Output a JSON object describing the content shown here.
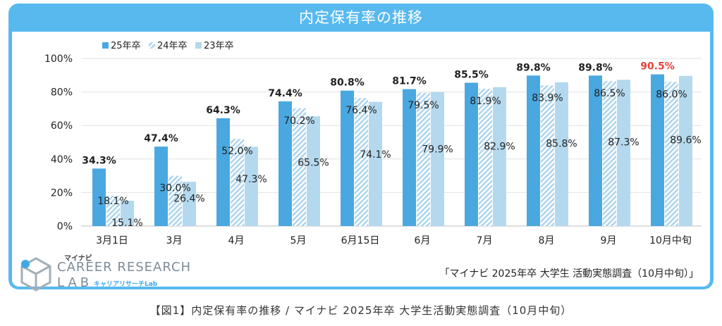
{
  "header": {
    "title": "内定保有率の推移"
  },
  "chart_data": {
    "type": "bar",
    "categories": [
      "3月1日",
      "3月",
      "4月",
      "5月",
      "6月15日",
      "6月",
      "7月",
      "8月",
      "9月",
      "10月中旬"
    ],
    "y_ticks": [
      "0%",
      "20%",
      "40%",
      "60%",
      "80%",
      "100%"
    ],
    "ylim": [
      0,
      100
    ],
    "series": [
      {
        "name": "25年卒",
        "color": "#4aa8e0",
        "values": [
          34.3,
          47.4,
          64.3,
          74.4,
          80.8,
          81.7,
          85.5,
          89.8,
          89.8,
          90.5
        ],
        "labels": [
          "34.3%",
          "47.4%",
          "64.3%",
          "74.4%",
          "80.8%",
          "81.7%",
          "85.5%",
          "89.8%",
          "89.8%",
          "90.5%"
        ]
      },
      {
        "name": "24年卒",
        "color": "#aed6ef",
        "values": [
          18.1,
          30.0,
          52.0,
          70.2,
          76.4,
          79.5,
          81.9,
          83.9,
          86.5,
          86.0
        ],
        "labels": [
          "18.1%",
          "30.0%",
          "52.0%",
          "70.2%",
          "76.4%",
          "79.5%",
          "81.9%",
          "83.9%",
          "86.5%",
          "86.0%"
        ]
      },
      {
        "name": "23年卒",
        "color": "#b4d9ee",
        "values": [
          15.1,
          26.4,
          47.3,
          65.5,
          74.1,
          79.9,
          82.9,
          85.8,
          87.3,
          89.6
        ],
        "labels": [
          "15.1%",
          "26.4%",
          "47.3%",
          "65.5%",
          "74.1%",
          "79.9%",
          "82.9%",
          "85.8%",
          "87.3%",
          "89.6%"
        ]
      }
    ],
    "highlight_color": "#e8413a",
    "grid": true,
    "legend_position": "top-left"
  },
  "logo": {
    "badge": "マイナビ",
    "line1": "CAREER RESEARCH",
    "line2": "LAB",
    "sub": "キャリアリサーチLab"
  },
  "source": "「マイナビ 2025年卒 大学生 活動実態調査（10月中旬）」",
  "caption": "【図1】内定保有率の推移 / マイナビ 2025年卒 大学生活動実態調査（10月中旬）"
}
